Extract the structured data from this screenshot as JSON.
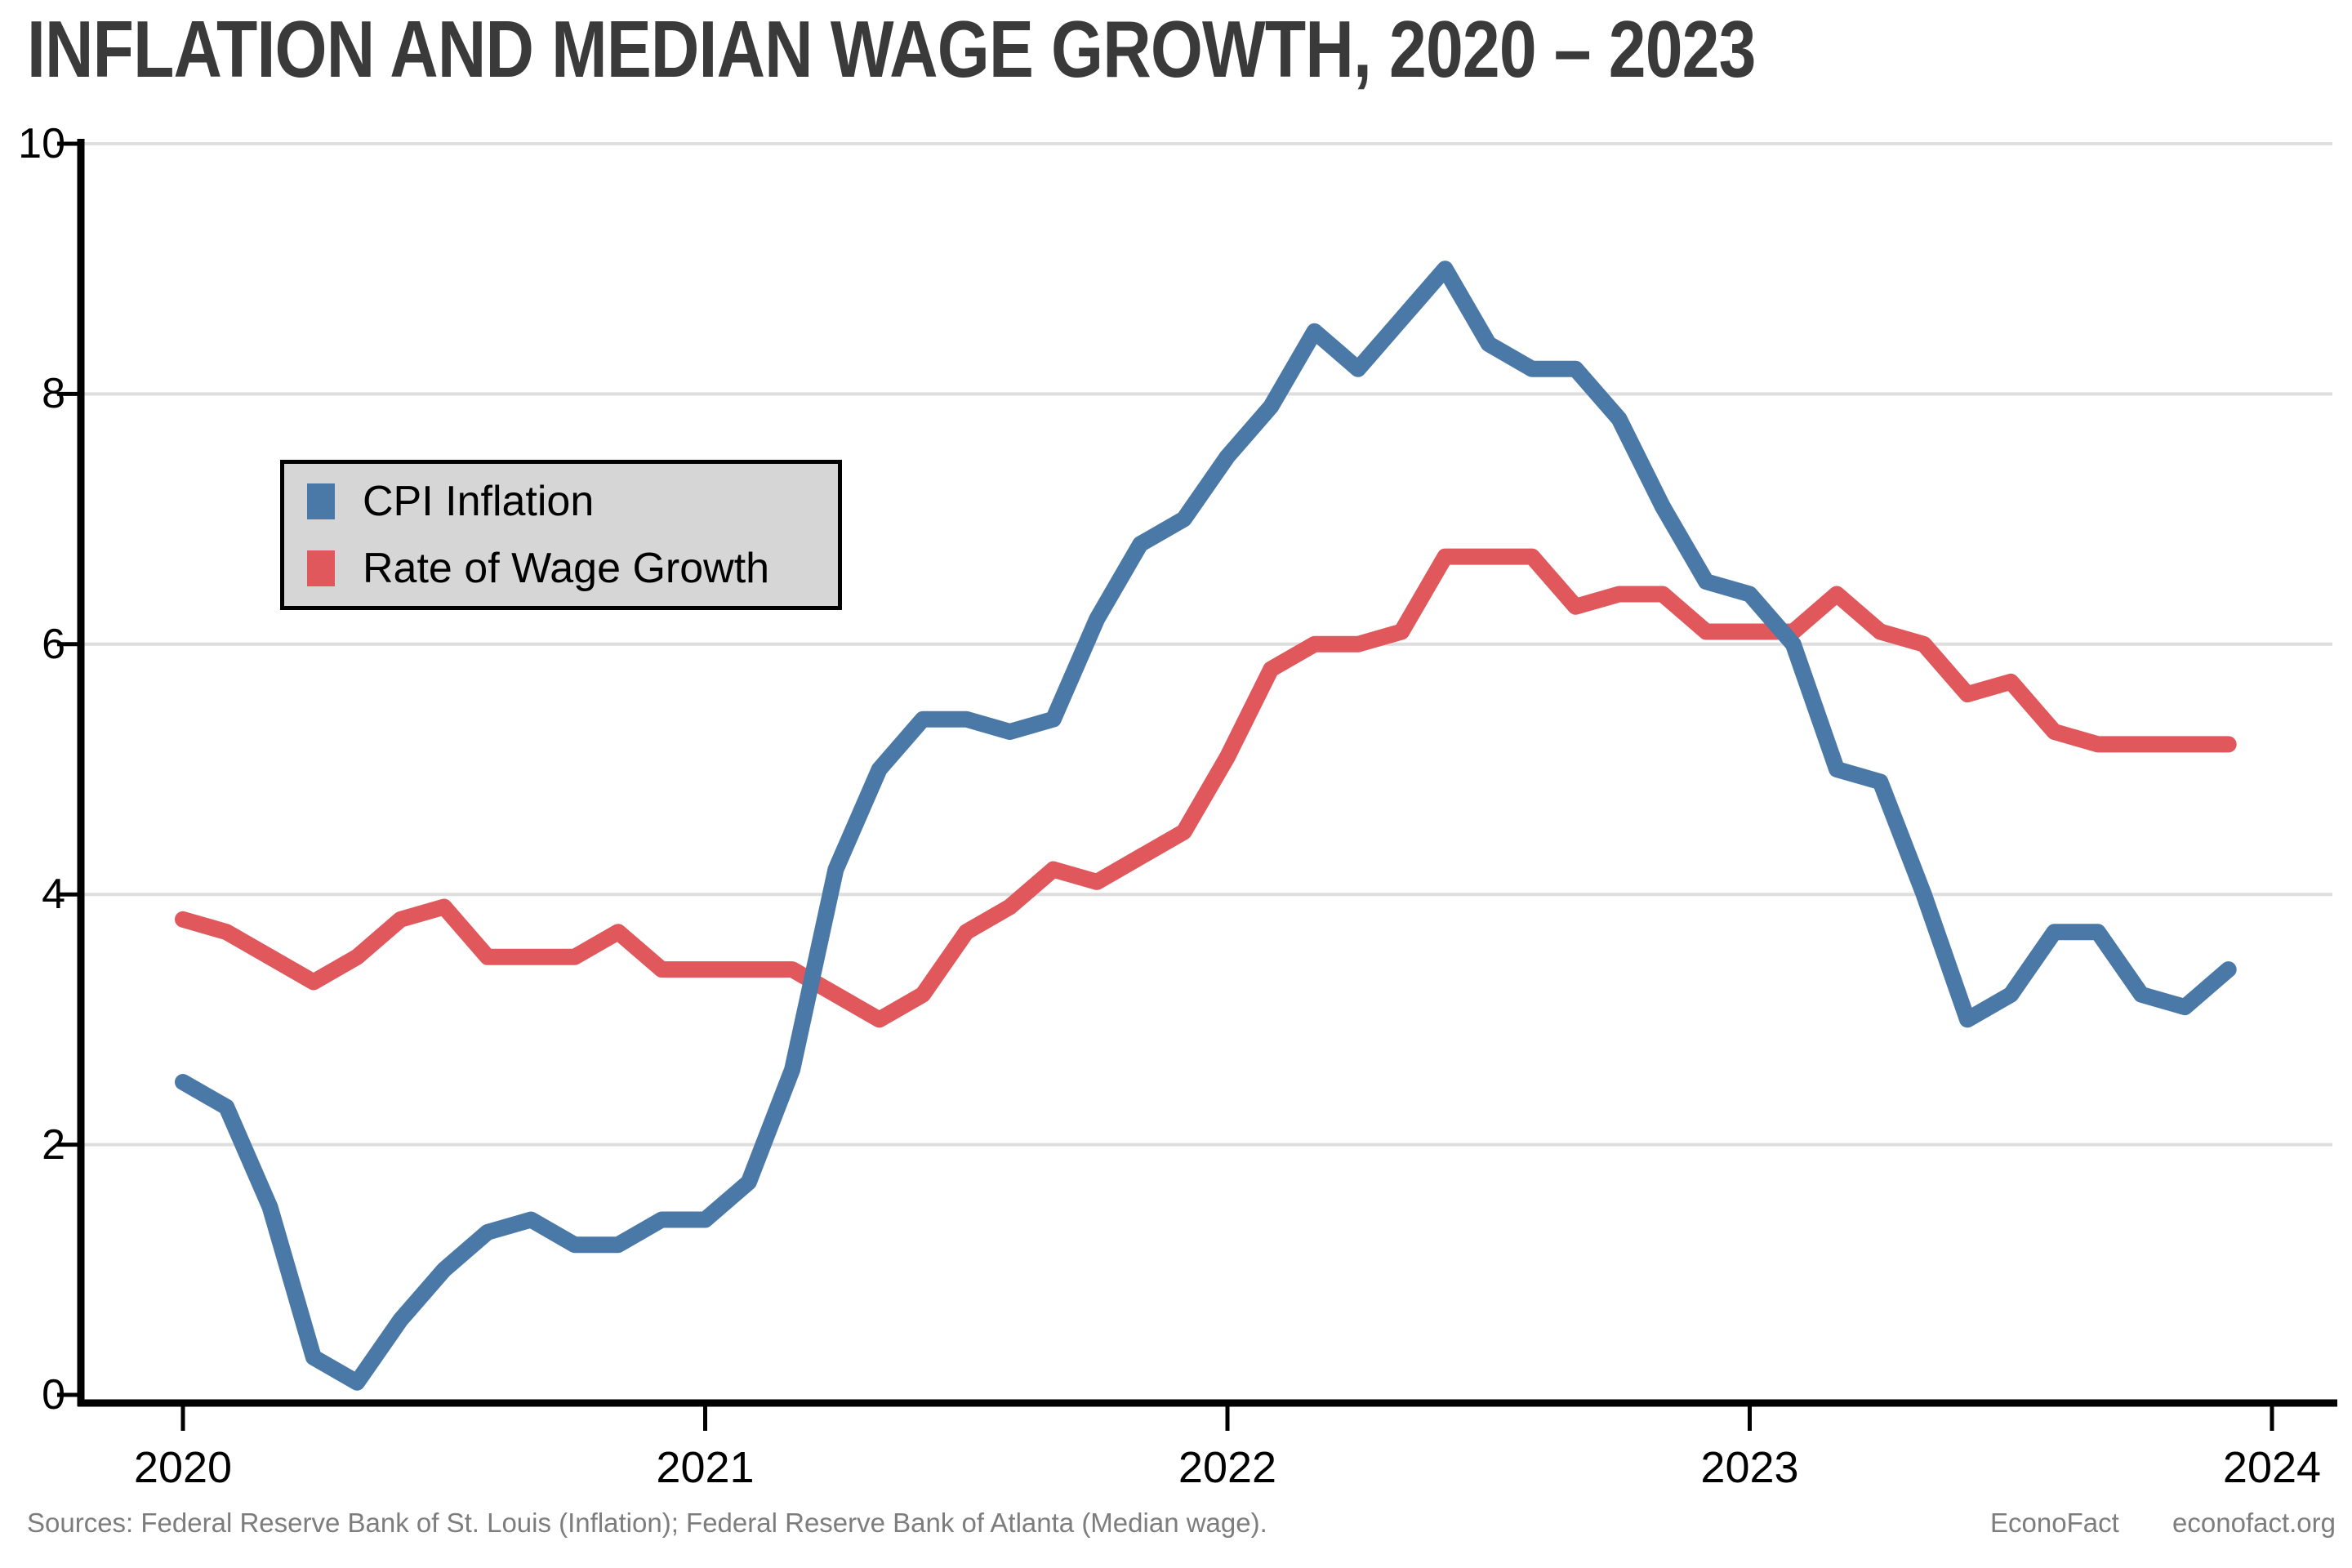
{
  "title": "INFLATION AND MEDIAN WAGE GROWTH, 2020 – 2023",
  "footer": {
    "sources": "Sources: Federal Reserve Bank of St. Louis (Inflation); Federal Reserve Bank of Atlanta (Median wage).",
    "brand": "EconoFact",
    "url": "econofact.org"
  },
  "legend": {
    "items": [
      {
        "label": "CPI Inflation",
        "series": "cpi"
      },
      {
        "label": "Rate of Wage Growth",
        "series": "wage"
      }
    ],
    "background": "#d6d6d6",
    "border_color": "#000000"
  },
  "colors": {
    "cpi": "#4a79a8",
    "wage": "#e1585c",
    "grid": "#dedede",
    "axis": "#000000",
    "title": "#3a3a3a",
    "footer_text": "#7d7d7d"
  },
  "chart_data": {
    "type": "line",
    "title": "INFLATION AND MEDIAN WAGE GROWTH, 2020 – 2023",
    "xlabel": "",
    "ylabel": "",
    "ylim": [
      0,
      10
    ],
    "yticks": [
      0,
      2,
      4,
      6,
      8,
      10
    ],
    "xticks": [
      "2020",
      "2021",
      "2022",
      "2023",
      "2024"
    ],
    "grid": "horizontal",
    "legend_position": "upper-left-inside",
    "x": [
      "2020-01",
      "2020-02",
      "2020-03",
      "2020-04",
      "2020-05",
      "2020-06",
      "2020-07",
      "2020-08",
      "2020-09",
      "2020-10",
      "2020-11",
      "2020-12",
      "2021-01",
      "2021-02",
      "2021-03",
      "2021-04",
      "2021-05",
      "2021-06",
      "2021-07",
      "2021-08",
      "2021-09",
      "2021-10",
      "2021-11",
      "2021-12",
      "2022-01",
      "2022-02",
      "2022-03",
      "2022-04",
      "2022-05",
      "2022-06",
      "2022-07",
      "2022-08",
      "2022-09",
      "2022-10",
      "2022-11",
      "2022-12",
      "2023-01",
      "2023-02",
      "2023-03",
      "2023-04",
      "2023-05",
      "2023-06",
      "2023-07",
      "2023-08",
      "2023-09",
      "2023-10",
      "2023-11",
      "2023-12"
    ],
    "series": [
      {
        "name": "CPI Inflation",
        "key": "cpi",
        "color": "#4a79a8",
        "values": [
          2.5,
          2.3,
          1.5,
          0.3,
          0.1,
          0.6,
          1.0,
          1.3,
          1.4,
          1.2,
          1.2,
          1.4,
          1.4,
          1.7,
          2.6,
          4.2,
          5.0,
          5.4,
          5.4,
          5.3,
          5.4,
          6.2,
          6.8,
          7.0,
          7.5,
          7.9,
          8.5,
          8.2,
          8.6,
          9.0,
          8.4,
          8.2,
          8.2,
          7.8,
          7.1,
          6.5,
          6.4,
          6.0,
          5.0,
          4.9,
          4.0,
          3.0,
          3.2,
          3.7,
          3.7,
          3.2,
          3.1,
          3.4
        ]
      },
      {
        "name": "Rate of Wage Growth",
        "key": "wage",
        "color": "#e1585c",
        "values": [
          3.8,
          3.7,
          3.5,
          3.3,
          3.5,
          3.8,
          3.9,
          3.5,
          3.5,
          3.5,
          3.7,
          3.4,
          3.4,
          3.4,
          3.4,
          3.2,
          3.0,
          3.2,
          3.7,
          3.9,
          4.2,
          4.1,
          4.3,
          4.5,
          5.1,
          5.8,
          6.0,
          6.0,
          6.1,
          6.7,
          6.7,
          6.7,
          6.3,
          6.4,
          6.4,
          6.1,
          6.1,
          6.1,
          6.4,
          6.1,
          6.0,
          5.6,
          5.7,
          5.3,
          5.2,
          5.2,
          5.2,
          5.2
        ]
      }
    ]
  }
}
